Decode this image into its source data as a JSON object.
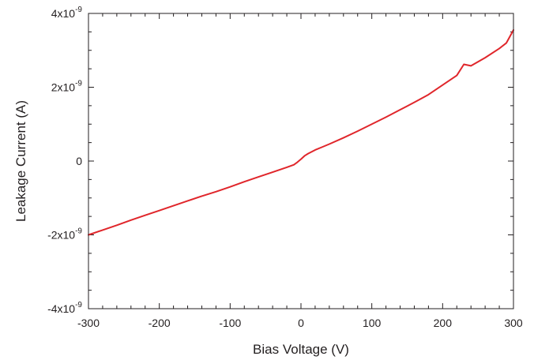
{
  "chart_data": {
    "type": "line",
    "title": "",
    "xlabel": "Bias Voltage (V)",
    "ylabel": "Leakage Current (A)",
    "xlim": [
      -300,
      300
    ],
    "ylim": [
      -4e-09,
      4e-09
    ],
    "x_ticks": [
      -300,
      -200,
      -100,
      0,
      100,
      200,
      300
    ],
    "x_tick_labels": [
      "-300",
      "-200",
      "-100",
      "0",
      "100",
      "200",
      "300"
    ],
    "x_minor_step": 20,
    "y_ticks": [
      -4e-09,
      -2e-09,
      0,
      2e-09,
      4e-09
    ],
    "y_tick_labels": [
      {
        "base": "-4x10",
        "exp": "-9"
      },
      {
        "base": "-2x10",
        "exp": "-9"
      },
      {
        "base": "0",
        "exp": ""
      },
      {
        "base": "2x10",
        "exp": "-9"
      },
      {
        "base": "4x10",
        "exp": "-9"
      }
    ],
    "y_minor_step": 5e-10,
    "grid": false,
    "legend": "none",
    "series": [
      {
        "color": "#e0262b",
        "x": [
          -300,
          -280,
          -260,
          -240,
          -220,
          -200,
          -180,
          -160,
          -140,
          -120,
          -100,
          -80,
          -60,
          -40,
          -20,
          -10,
          -5,
          0,
          5,
          10,
          20,
          30,
          40,
          60,
          80,
          100,
          120,
          140,
          150,
          160,
          180,
          200,
          220,
          230,
          240,
          260,
          280,
          290,
          300
        ],
        "y": [
          -2e-09,
          -1.87e-09,
          -1.74e-09,
          -1.6e-09,
          -1.47e-09,
          -1.34e-09,
          -1.21e-09,
          -1.08e-09,
          -9.5e-10,
          -8.3e-10,
          -7e-10,
          -5.6e-10,
          -4.3e-10,
          -3e-10,
          -1.7e-10,
          -1e-10,
          -3e-11,
          5e-11,
          1.4e-10,
          2e-10,
          3e-10,
          3.8e-10,
          4.6e-10,
          6.3e-10,
          8.1e-10,
          1e-09,
          1.19e-09,
          1.39e-09,
          1.49e-09,
          1.59e-09,
          1.8e-09,
          2.06e-09,
          2.32e-09,
          2.62e-09,
          2.58e-09,
          2.8e-09,
          3.05e-09,
          3.2e-09,
          3.55e-09
        ]
      }
    ]
  }
}
